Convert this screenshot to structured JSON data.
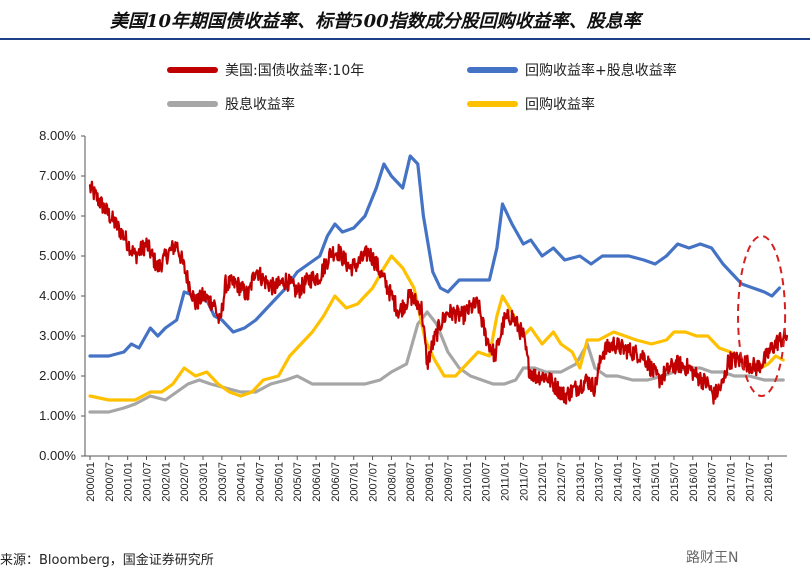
{
  "title": "美国10年期国债收益率、标普500指数成分股回购收益率、股息率",
  "source": "来源：Bloomberg，国金证券研究所",
  "watermark": "路财王N",
  "chart_data": {
    "type": "line",
    "ylim": [
      0,
      8
    ],
    "y_ticks": [
      "0.00%",
      "1.00%",
      "2.00%",
      "3.00%",
      "4.00%",
      "5.00%",
      "6.00%",
      "7.00%",
      "8.00%"
    ],
    "x_ticks": [
      "2000/01",
      "2000/07",
      "2001/01",
      "2001/07",
      "2002/01",
      "2002/07",
      "2003/01",
      "2003/07",
      "2004/01",
      "2004/07",
      "2005/01",
      "2005/07",
      "2006/01",
      "2006/07",
      "2007/01",
      "2007/07",
      "2008/01",
      "2008/07",
      "2009/01",
      "2009/07",
      "2010/01",
      "2010/07",
      "2011/01",
      "2011/07",
      "2012/01",
      "2012/07",
      "2013/01",
      "2013/07",
      "2014/01",
      "2014/07",
      "2015/01",
      "2015/07",
      "2016/01",
      "2016/07",
      "2017/01",
      "2017/07",
      "2018/01"
    ],
    "grid": false,
    "legend_position": "top",
    "highlight": {
      "shape": "dashed-ellipse",
      "color": "#d62020",
      "x_range": [
        2017.2,
        2018.45
      ],
      "y_range": [
        1.5,
        5.5
      ]
    },
    "series": [
      {
        "name": "美国:国债收益率:10年",
        "color": "#c00000",
        "style": "noisy",
        "points": [
          [
            2000.0,
            6.7
          ],
          [
            2000.3,
            6.3
          ],
          [
            2000.6,
            5.9
          ],
          [
            2000.9,
            5.5
          ],
          [
            2001.2,
            5.0
          ],
          [
            2001.5,
            5.3
          ],
          [
            2001.8,
            4.7
          ],
          [
            2002.1,
            5.1
          ],
          [
            2002.3,
            5.3
          ],
          [
            2002.6,
            4.4
          ],
          [
            2002.8,
            3.8
          ],
          [
            2003.0,
            4.0
          ],
          [
            2003.3,
            3.8
          ],
          [
            2003.45,
            3.3
          ],
          [
            2003.6,
            4.3
          ],
          [
            2003.9,
            4.3
          ],
          [
            2004.2,
            4.0
          ],
          [
            2004.4,
            4.7
          ],
          [
            2004.6,
            4.4
          ],
          [
            2004.9,
            4.2
          ],
          [
            2005.2,
            4.4
          ],
          [
            2005.5,
            4.1
          ],
          [
            2005.8,
            4.4
          ],
          [
            2006.1,
            4.5
          ],
          [
            2006.4,
            5.1
          ],
          [
            2006.6,
            5.1
          ],
          [
            2006.9,
            4.7
          ],
          [
            2007.1,
            4.8
          ],
          [
            2007.4,
            5.1
          ],
          [
            2007.6,
            4.8
          ],
          [
            2007.9,
            4.2
          ],
          [
            2008.2,
            3.6
          ],
          [
            2008.5,
            4.0
          ],
          [
            2008.8,
            3.7
          ],
          [
            2008.95,
            2.3
          ],
          [
            2009.1,
            2.8
          ],
          [
            2009.3,
            3.3
          ],
          [
            2009.5,
            3.6
          ],
          [
            2009.9,
            3.5
          ],
          [
            2010.1,
            3.7
          ],
          [
            2010.3,
            3.8
          ],
          [
            2010.5,
            3.0
          ],
          [
            2010.75,
            2.5
          ],
          [
            2011.0,
            3.4
          ],
          [
            2011.2,
            3.5
          ],
          [
            2011.5,
            3.0
          ],
          [
            2011.65,
            2.2
          ],
          [
            2011.8,
            2.0
          ],
          [
            2012.1,
            2.0
          ],
          [
            2012.4,
            1.7
          ],
          [
            2012.6,
            1.5
          ],
          [
            2012.9,
            1.7
          ],
          [
            2013.2,
            1.9
          ],
          [
            2013.4,
            1.7
          ],
          [
            2013.6,
            2.6
          ],
          [
            2013.9,
            2.8
          ],
          [
            2014.1,
            2.7
          ],
          [
            2014.4,
            2.6
          ],
          [
            2014.7,
            2.5
          ],
          [
            2014.95,
            2.1
          ],
          [
            2015.1,
            1.9
          ],
          [
            2015.4,
            2.2
          ],
          [
            2015.6,
            2.3
          ],
          [
            2015.9,
            2.2
          ],
          [
            2016.1,
            2.0
          ],
          [
            2016.4,
            1.8
          ],
          [
            2016.55,
            1.5
          ],
          [
            2016.8,
            1.8
          ],
          [
            2016.95,
            2.4
          ],
          [
            2017.2,
            2.4
          ],
          [
            2017.5,
            2.3
          ],
          [
            2017.7,
            2.2
          ],
          [
            2017.9,
            2.4
          ],
          [
            2018.1,
            2.7
          ],
          [
            2018.3,
            2.9
          ],
          [
            2018.5,
            3.0
          ]
        ]
      },
      {
        "name": "回购收益率+股息收益率",
        "color": "#4472c4",
        "style": "smooth",
        "points": [
          [
            2000.0,
            2.5
          ],
          [
            2000.5,
            2.5
          ],
          [
            2000.9,
            2.6
          ],
          [
            2001.1,
            2.8
          ],
          [
            2001.3,
            2.7
          ],
          [
            2001.6,
            3.2
          ],
          [
            2001.8,
            3.0
          ],
          [
            2002.0,
            3.2
          ],
          [
            2002.3,
            3.4
          ],
          [
            2002.5,
            4.1
          ],
          [
            2002.8,
            4.0
          ],
          [
            2003.0,
            4.1
          ],
          [
            2003.3,
            3.5
          ],
          [
            2003.5,
            3.4
          ],
          [
            2003.8,
            3.1
          ],
          [
            2004.1,
            3.2
          ],
          [
            2004.4,
            3.4
          ],
          [
            2004.8,
            3.8
          ],
          [
            2005.2,
            4.2
          ],
          [
            2005.5,
            4.6
          ],
          [
            2005.8,
            4.8
          ],
          [
            2006.1,
            5.0
          ],
          [
            2006.3,
            5.5
          ],
          [
            2006.5,
            5.8
          ],
          [
            2006.7,
            5.6
          ],
          [
            2007.0,
            5.7
          ],
          [
            2007.3,
            6.0
          ],
          [
            2007.6,
            6.7
          ],
          [
            2007.8,
            7.3
          ],
          [
            2008.0,
            7.0
          ],
          [
            2008.3,
            6.7
          ],
          [
            2008.5,
            7.5
          ],
          [
            2008.7,
            7.3
          ],
          [
            2008.85,
            6.0
          ],
          [
            2009.1,
            4.6
          ],
          [
            2009.3,
            4.2
          ],
          [
            2009.5,
            4.1
          ],
          [
            2009.8,
            4.4
          ],
          [
            2010.2,
            4.4
          ],
          [
            2010.4,
            4.4
          ],
          [
            2010.6,
            4.4
          ],
          [
            2010.8,
            5.2
          ],
          [
            2010.95,
            6.3
          ],
          [
            2011.2,
            5.8
          ],
          [
            2011.5,
            5.3
          ],
          [
            2011.7,
            5.4
          ],
          [
            2012.0,
            5.0
          ],
          [
            2012.3,
            5.2
          ],
          [
            2012.6,
            4.9
          ],
          [
            2013.0,
            5.0
          ],
          [
            2013.3,
            4.8
          ],
          [
            2013.6,
            5.0
          ],
          [
            2014.0,
            5.0
          ],
          [
            2014.3,
            5.0
          ],
          [
            2014.7,
            4.9
          ],
          [
            2015.0,
            4.8
          ],
          [
            2015.3,
            5.0
          ],
          [
            2015.6,
            5.3
          ],
          [
            2015.9,
            5.2
          ],
          [
            2016.2,
            5.3
          ],
          [
            2016.5,
            5.2
          ],
          [
            2016.8,
            4.8
          ],
          [
            2017.0,
            4.6
          ],
          [
            2017.3,
            4.3
          ],
          [
            2017.6,
            4.2
          ],
          [
            2017.9,
            4.1
          ],
          [
            2018.1,
            4.0
          ],
          [
            2018.3,
            4.2
          ]
        ]
      },
      {
        "name": "股息收益率",
        "color": "#a6a6a6",
        "style": "smooth",
        "points": [
          [
            2000.0,
            1.1
          ],
          [
            2000.5,
            1.1
          ],
          [
            2000.9,
            1.2
          ],
          [
            2001.2,
            1.3
          ],
          [
            2001.6,
            1.5
          ],
          [
            2002.0,
            1.4
          ],
          [
            2002.3,
            1.6
          ],
          [
            2002.6,
            1.8
          ],
          [
            2002.9,
            1.9
          ],
          [
            2003.2,
            1.8
          ],
          [
            2003.6,
            1.7
          ],
          [
            2004.0,
            1.6
          ],
          [
            2004.4,
            1.6
          ],
          [
            2004.8,
            1.8
          ],
          [
            2005.2,
            1.9
          ],
          [
            2005.5,
            2.0
          ],
          [
            2005.9,
            1.8
          ],
          [
            2006.3,
            1.8
          ],
          [
            2006.8,
            1.8
          ],
          [
            2007.3,
            1.8
          ],
          [
            2007.7,
            1.9
          ],
          [
            2008.0,
            2.1
          ],
          [
            2008.4,
            2.3
          ],
          [
            2008.7,
            3.3
          ],
          [
            2008.95,
            3.6
          ],
          [
            2009.2,
            3.3
          ],
          [
            2009.5,
            2.6
          ],
          [
            2009.8,
            2.2
          ],
          [
            2010.1,
            2.0
          ],
          [
            2010.4,
            1.9
          ],
          [
            2010.7,
            1.8
          ],
          [
            2011.0,
            1.8
          ],
          [
            2011.3,
            1.9
          ],
          [
            2011.5,
            2.2
          ],
          [
            2011.8,
            2.2
          ],
          [
            2012.1,
            2.1
          ],
          [
            2012.5,
            2.1
          ],
          [
            2012.9,
            2.3
          ],
          [
            2013.2,
            2.8
          ],
          [
            2013.4,
            2.2
          ],
          [
            2013.7,
            2.0
          ],
          [
            2014.0,
            2.0
          ],
          [
            2014.4,
            1.9
          ],
          [
            2014.8,
            1.9
          ],
          [
            2015.2,
            2.0
          ],
          [
            2015.5,
            2.1
          ],
          [
            2015.9,
            2.2
          ],
          [
            2016.2,
            2.2
          ],
          [
            2016.5,
            2.1
          ],
          [
            2016.8,
            2.1
          ],
          [
            2017.1,
            2.0
          ],
          [
            2017.5,
            2.0
          ],
          [
            2017.9,
            1.9
          ],
          [
            2018.2,
            1.9
          ],
          [
            2018.4,
            1.9
          ]
        ]
      },
      {
        "name": "回购收益率",
        "color": "#ffc000",
        "style": "smooth",
        "points": [
          [
            2000.0,
            1.5
          ],
          [
            2000.5,
            1.4
          ],
          [
            2000.9,
            1.4
          ],
          [
            2001.2,
            1.4
          ],
          [
            2001.6,
            1.6
          ],
          [
            2001.9,
            1.6
          ],
          [
            2002.2,
            1.8
          ],
          [
            2002.5,
            2.2
          ],
          [
            2002.8,
            2.0
          ],
          [
            2003.1,
            2.1
          ],
          [
            2003.4,
            1.8
          ],
          [
            2003.7,
            1.6
          ],
          [
            2004.0,
            1.5
          ],
          [
            2004.3,
            1.6
          ],
          [
            2004.6,
            1.9
          ],
          [
            2005.0,
            2.0
          ],
          [
            2005.3,
            2.5
          ],
          [
            2005.6,
            2.8
          ],
          [
            2005.9,
            3.1
          ],
          [
            2006.2,
            3.5
          ],
          [
            2006.5,
            4.0
          ],
          [
            2006.8,
            3.7
          ],
          [
            2007.1,
            3.8
          ],
          [
            2007.5,
            4.2
          ],
          [
            2007.8,
            4.7
          ],
          [
            2008.0,
            5.0
          ],
          [
            2008.3,
            4.7
          ],
          [
            2008.6,
            4.2
          ],
          [
            2008.9,
            2.9
          ],
          [
            2009.15,
            2.4
          ],
          [
            2009.4,
            2.0
          ],
          [
            2009.7,
            2.0
          ],
          [
            2010.0,
            2.3
          ],
          [
            2010.3,
            2.6
          ],
          [
            2010.6,
            2.5
          ],
          [
            2010.8,
            3.5
          ],
          [
            2010.95,
            4.0
          ],
          [
            2011.2,
            3.6
          ],
          [
            2011.5,
            3.0
          ],
          [
            2011.7,
            3.2
          ],
          [
            2012.0,
            2.8
          ],
          [
            2012.3,
            3.1
          ],
          [
            2012.5,
            2.8
          ],
          [
            2012.8,
            2.6
          ],
          [
            2013.0,
            2.2
          ],
          [
            2013.2,
            2.9
          ],
          [
            2013.5,
            2.9
          ],
          [
            2013.9,
            3.1
          ],
          [
            2014.2,
            3.0
          ],
          [
            2014.5,
            2.9
          ],
          [
            2014.9,
            2.8
          ],
          [
            2015.3,
            2.9
          ],
          [
            2015.5,
            3.1
          ],
          [
            2015.8,
            3.1
          ],
          [
            2016.1,
            3.0
          ],
          [
            2016.4,
            3.0
          ],
          [
            2016.7,
            2.7
          ],
          [
            2017.0,
            2.6
          ],
          [
            2017.3,
            2.4
          ],
          [
            2017.5,
            2.3
          ],
          [
            2017.8,
            2.2
          ],
          [
            2018.0,
            2.3
          ],
          [
            2018.2,
            2.5
          ],
          [
            2018.4,
            2.4
          ]
        ]
      }
    ]
  }
}
